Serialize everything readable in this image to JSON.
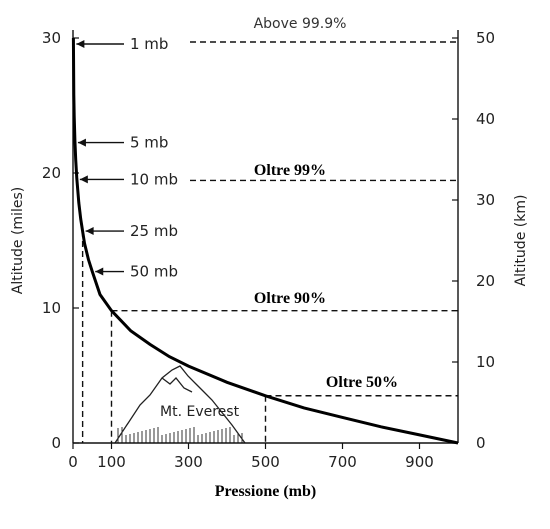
{
  "chart_data": {
    "type": "line",
    "xlabel": "Pressione (mb)",
    "ylabel_left": "Altitude (miles)",
    "ylabel_right": "Altitude (km)",
    "xlim": [
      0,
      1000
    ],
    "ylim_left": [
      0,
      30
    ],
    "ylim_right": [
      0,
      50
    ],
    "xticks": [
      0,
      100,
      300,
      500,
      700,
      900
    ],
    "yticks_left": [
      0,
      10,
      20,
      30
    ],
    "yticks_right": [
      0,
      10,
      20,
      30,
      40,
      50
    ],
    "grid": false,
    "series": [
      {
        "x": [
          1000,
          900,
          800,
          700,
          600,
          500,
          400,
          300,
          250,
          200,
          150,
          100,
          70,
          50,
          40,
          30,
          25,
          20,
          15,
          10,
          7,
          5,
          3,
          2,
          1
        ],
        "y": [
          0,
          0.6,
          1.2,
          1.9,
          2.6,
          3.5,
          4.5,
          5.7,
          6.4,
          7.3,
          8.3,
          9.8,
          11.0,
          12.7,
          13.6,
          14.8,
          15.7,
          16.6,
          17.8,
          19.6,
          21.0,
          22.4,
          24.2,
          25.8,
          30
        ]
      }
    ],
    "annotations": {
      "pressure_labels": [
        {
          "text": "1 mb",
          "x": 1,
          "y": 30
        },
        {
          "text": "5 mb",
          "x": 5,
          "y": 22.4
        },
        {
          "text": "10 mb",
          "x": 10,
          "y": 19.6
        },
        {
          "text": "25 mb",
          "x": 25,
          "y": 15.7
        },
        {
          "text": "50 mb",
          "x": 50,
          "y": 12.7
        }
      ],
      "levels": [
        {
          "text": "Above 99.9%",
          "x": 1,
          "y": 30,
          "bold": false
        },
        {
          "text": "Oltre 99%",
          "x": 10,
          "y": 19.6,
          "bold": true
        },
        {
          "text": "Oltre 90%",
          "x": 100,
          "y": 9.8,
          "bold": true
        },
        {
          "text": "Oltre 50%",
          "x": 500,
          "y": 3.5,
          "bold": true
        }
      ],
      "mountain_label": "Mt. Everest"
    }
  }
}
